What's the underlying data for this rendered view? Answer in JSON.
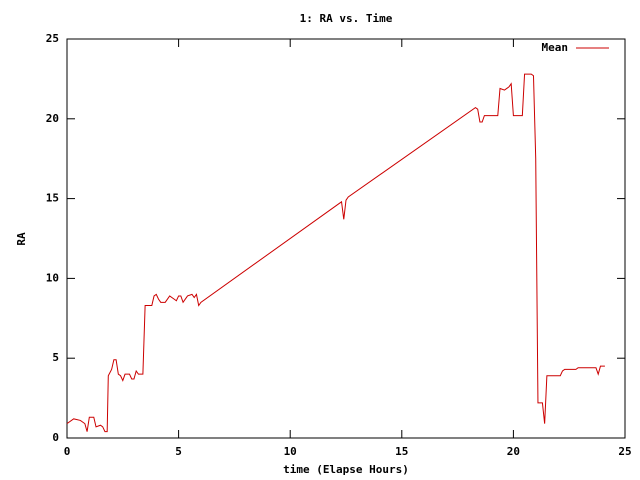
{
  "chart_data": {
    "type": "line",
    "title": "1: RA vs. Time",
    "xlabel": "time (Elapse Hours)",
    "ylabel": "RA",
    "legend": "top right",
    "xlim": [
      0,
      25
    ],
    "xticks": [
      0,
      5,
      10,
      15,
      20,
      25
    ],
    "ylim": [
      0,
      25
    ],
    "yticks": [
      0,
      5,
      10,
      15,
      20,
      25
    ],
    "series": [
      {
        "name": "Mean",
        "color": "#cc0000",
        "x": [
          0,
          0.3,
          0.6,
          0.8,
          0.9,
          1.0,
          1.2,
          1.3,
          1.5,
          1.6,
          1.7,
          1.8,
          1.85,
          2.0,
          2.1,
          2.2,
          2.3,
          2.4,
          2.5,
          2.6,
          2.8,
          2.9,
          3.0,
          3.1,
          3.2,
          3.4,
          3.5,
          3.6,
          3.8,
          3.9,
          4.0,
          4.1,
          4.2,
          4.4,
          4.6,
          4.8,
          4.9,
          5.0,
          5.1,
          5.2,
          5.4,
          5.6,
          5.7,
          5.8,
          5.9,
          6.0,
          12.3,
          12.4,
          12.5,
          12.6,
          18.3,
          18.4,
          18.5,
          18.6,
          18.7,
          19.0,
          19.3,
          19.4,
          19.6,
          19.8,
          19.9,
          20.0,
          20.4,
          20.5,
          20.8,
          20.9,
          21.0,
          21.1,
          21.3,
          21.4,
          21.5,
          21.6,
          22.1,
          22.2,
          22.3,
          22.8,
          22.9,
          23.7,
          23.8,
          23.9,
          24.1
        ],
        "values": [
          0.9,
          1.2,
          1.1,
          0.9,
          0.4,
          1.3,
          1.3,
          0.7,
          0.8,
          0.7,
          0.4,
          0.4,
          3.9,
          4.3,
          4.9,
          4.9,
          4.0,
          3.9,
          3.6,
          4.0,
          4.0,
          3.7,
          3.7,
          4.2,
          4.0,
          4.0,
          8.3,
          8.3,
          8.3,
          8.9,
          9.0,
          8.7,
          8.5,
          8.5,
          8.9,
          8.7,
          8.6,
          8.9,
          8.9,
          8.5,
          8.9,
          9.0,
          8.8,
          9.0,
          8.3,
          8.5,
          14.8,
          13.7,
          14.9,
          15.1,
          20.7,
          20.6,
          19.8,
          19.8,
          20.2,
          20.2,
          20.2,
          21.9,
          21.8,
          22.0,
          22.2,
          20.2,
          20.2,
          22.8,
          22.8,
          22.7,
          17.5,
          2.2,
          2.2,
          0.9,
          3.9,
          3.9,
          3.9,
          4.2,
          4.3,
          4.3,
          4.4,
          4.4,
          4.0,
          4.5,
          4.5
        ]
      }
    ]
  }
}
